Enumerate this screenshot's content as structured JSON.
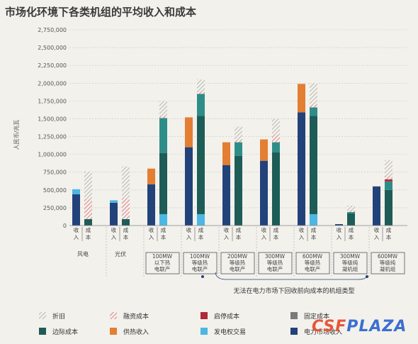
{
  "title": "市场化环境下各类机组的平均收入和成本",
  "watermark": {
    "part1": "CSF",
    "part2": "PLAZA"
  },
  "note": "无法在电力市场下回收前向成本的机组类型",
  "colors": {
    "折旧": "#c9c7bf",
    "融资成本": "#e07e86",
    "启停成本": "#b0283a",
    "固定成本": "#7a7a7a",
    "边际成本": "#1e5c57",
    "供热收入": "#e37e33",
    "发电权交易": "#4bb7e3",
    "电力市场收入": "#22427a",
    "teal": "#2e8d88"
  },
  "chart_data": {
    "type": "bar",
    "ylabel": "人民币/兆瓦",
    "ylim": [
      0,
      2750000
    ],
    "yticks": [
      "0",
      "250,000",
      "500,000",
      "750,000",
      "1,000,000",
      "1,250,000",
      "1,500,000",
      "1,750,000",
      "2,000,000",
      "2,250,000",
      "2,500,000",
      "2,750,000"
    ],
    "grid": true,
    "legend_position": "bottom",
    "legend": [
      "折旧",
      "融资成本",
      "启停成本",
      "固定成本",
      "边际成本",
      "供热收入",
      "发电权交易",
      "电力市场收入"
    ],
    "sub_labels": {
      "revenue": "收入",
      "cost": "成本"
    },
    "groups": [
      {
        "label": "风电",
        "boxed": false,
        "revenue": [
          {
            "s": "电力市场收入",
            "v": 440000
          },
          {
            "s": "发电权交易",
            "v": 70000
          }
        ],
        "cost": [
          {
            "s": "边际成本",
            "v": 90000
          },
          {
            "s": "融资成本",
            "v": 280000
          },
          {
            "s": "折旧",
            "v": 390000
          }
        ]
      },
      {
        "label": "光伏",
        "boxed": false,
        "revenue": [
          {
            "s": "电力市场收入",
            "v": 320000
          },
          {
            "s": "发电权交易",
            "v": 35000
          }
        ],
        "cost": [
          {
            "s": "边际成本",
            "v": 90000
          },
          {
            "s": "融资成本",
            "v": 290000
          },
          {
            "s": "折旧",
            "v": 450000
          }
        ]
      },
      {
        "label": "100MW以下热电联产",
        "boxed": true,
        "lines": [
          "100MW",
          "以下热",
          "电联产"
        ],
        "revenue": [
          {
            "s": "电力市场收入",
            "v": 580000
          },
          {
            "s": "供热收入",
            "v": 220000
          }
        ],
        "cost": [
          {
            "s": "发电权交易",
            "v": 160000
          },
          {
            "s": "边际成本",
            "v": 860000
          },
          {
            "s": "teal",
            "v": 490000
          },
          {
            "s": "融资成本",
            "v": 30000
          },
          {
            "s": "折旧",
            "v": 210000
          }
        ]
      },
      {
        "label": "100MW等级热电联产",
        "boxed": true,
        "lines": [
          "100MW",
          "等级热",
          "电联产"
        ],
        "revenue": [
          {
            "s": "电力市场收入",
            "v": 1100000
          },
          {
            "s": "供热收入",
            "v": 420000
          }
        ],
        "cost": [
          {
            "s": "发电权交易",
            "v": 160000
          },
          {
            "s": "边际成本",
            "v": 1380000
          },
          {
            "s": "teal",
            "v": 310000
          },
          {
            "s": "融资成本",
            "v": 30000
          },
          {
            "s": "折旧",
            "v": 170000
          }
        ]
      },
      {
        "label": "200MW等级热电联产",
        "boxed": true,
        "lines": [
          "200MW",
          "等级热",
          "电联产"
        ],
        "revenue": [
          {
            "s": "电力市场收入",
            "v": 850000
          },
          {
            "s": "供热收入",
            "v": 320000
          }
        ],
        "cost": [
          {
            "s": "边际成本",
            "v": 980000
          },
          {
            "s": "teal",
            "v": 190000
          },
          {
            "s": "融资成本",
            "v": 30000
          },
          {
            "s": "折旧",
            "v": 190000
          }
        ]
      },
      {
        "label": "300MW等级热电联产",
        "boxed": true,
        "lines": [
          "300MW",
          "等级热",
          "电联产"
        ],
        "revenue": [
          {
            "s": "电力市场收入",
            "v": 910000
          },
          {
            "s": "供热收入",
            "v": 300000
          }
        ],
        "cost": [
          {
            "s": "边际成本",
            "v": 1030000
          },
          {
            "s": "teal",
            "v": 140000
          },
          {
            "s": "融资成本",
            "v": 100000
          },
          {
            "s": "折旧",
            "v": 230000
          }
        ]
      },
      {
        "label": "600MW等级热电联产",
        "boxed": true,
        "lines": [
          "600MW",
          "等级热",
          "电联产"
        ],
        "revenue": [
          {
            "s": "电力市场收入",
            "v": 1590000
          },
          {
            "s": "供热收入",
            "v": 400000
          }
        ],
        "cost": [
          {
            "s": "发电权交易",
            "v": 160000
          },
          {
            "s": "边际成本",
            "v": 1380000
          },
          {
            "s": "teal",
            "v": 120000
          },
          {
            "s": "融资成本",
            "v": 40000
          },
          {
            "s": "折旧",
            "v": 300000
          }
        ]
      },
      {
        "label": "300MW等级纯凝机组",
        "boxed": true,
        "lines": [
          "300MW",
          "等级纯",
          "凝机组"
        ],
        "revenue": [
          {
            "s": "电力市场收入",
            "v": 20000
          }
        ],
        "cost": [
          {
            "s": "边际成本",
            "v": 170000
          },
          {
            "s": "teal",
            "v": 20000
          },
          {
            "s": "融资成本",
            "v": 20000
          },
          {
            "s": "折旧",
            "v": 70000
          }
        ]
      },
      {
        "label": "600MW等级纯凝机组",
        "boxed": true,
        "lines": [
          "600MW",
          "等级纯",
          "凝机组"
        ],
        "revenue": [
          {
            "s": "电力市场收入",
            "v": 550000
          }
        ],
        "cost": [
          {
            "s": "边际成本",
            "v": 500000
          },
          {
            "s": "teal",
            "v": 120000
          },
          {
            "s": "启停成本",
            "v": 30000
          },
          {
            "s": "融资成本",
            "v": 50000
          },
          {
            "s": "折旧",
            "v": 220000
          }
        ]
      }
    ]
  }
}
